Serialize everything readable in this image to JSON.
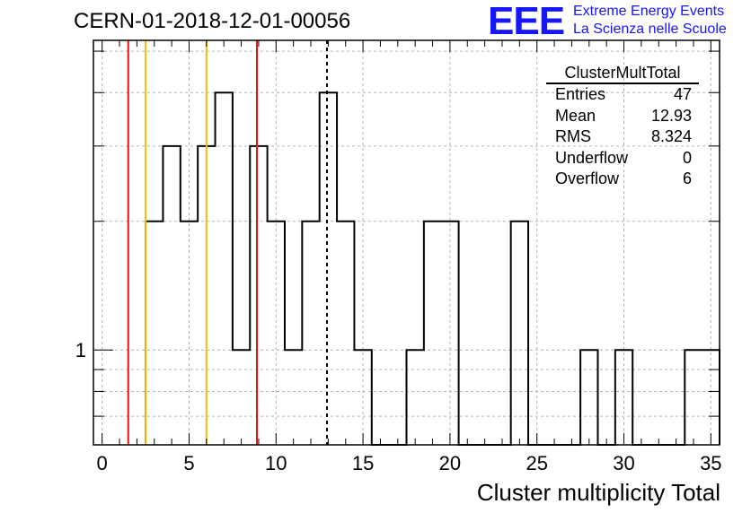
{
  "header": {
    "title": "CERN-01-2018-12-01-00056",
    "logo": "EEE",
    "org_line1": "Extreme Energy Events",
    "org_line2": "La Scienza nelle Scuole"
  },
  "stats": {
    "name": "ClusterMultTotal",
    "rows": [
      {
        "label": "Entries",
        "value": "47"
      },
      {
        "label": "Mean",
        "value": "12.93"
      },
      {
        "label": "RMS",
        "value": "8.324"
      },
      {
        "label": "Underflow",
        "value": "0"
      },
      {
        "label": "Overflow",
        "value": "6"
      }
    ]
  },
  "chart_data": {
    "type": "histogram",
    "title": "CERN-01-2018-12-01-00056",
    "xlabel": "Cluster multiplicity Total",
    "ylabel": "",
    "xlim": [
      -0.5,
      35.5
    ],
    "ylim": [
      0.6,
      5.3
    ],
    "yscale": "log",
    "grid": true,
    "bin_width": 1,
    "bins_low_edges": [
      2.5,
      3.5,
      4.5,
      5.5,
      6.5,
      7.5,
      8.5,
      9.5,
      10.5,
      11.5,
      12.5,
      13.5,
      14.5,
      15.5,
      16.5,
      17.5,
      18.5,
      19.5,
      20.5,
      21.5,
      22.5,
      23.5,
      24.5,
      25.5,
      26.5,
      27.5,
      28.5,
      29.5,
      30.5,
      31.5,
      32.5,
      33.5,
      34.5
    ],
    "counts": [
      2,
      3,
      2,
      3,
      4,
      1,
      3,
      2,
      1,
      2,
      4,
      2,
      1,
      0,
      0,
      1,
      2,
      2,
      0,
      0,
      0,
      2,
      0,
      0,
      0,
      1,
      0,
      1,
      0,
      0,
      0,
      1,
      1
    ],
    "x_ticks": [
      "0",
      "5",
      "10",
      "15",
      "20",
      "25",
      "30",
      "35"
    ],
    "x_tick_values": [
      0,
      5,
      10,
      15,
      20,
      25,
      30,
      35
    ],
    "y_ticks": [
      "1"
    ],
    "y_tick_values": [
      1
    ],
    "vertical_lines": [
      {
        "x": 1.5,
        "color": "#e8140c",
        "style": "solid"
      },
      {
        "x": 2.5,
        "color": "#f0c000",
        "style": "solid"
      },
      {
        "x": 6.0,
        "color": "#f0c000",
        "style": "solid"
      },
      {
        "x": 8.9,
        "color": "#e8140c",
        "style": "solid"
      },
      {
        "x": 12.93,
        "color": "#000000",
        "style": "dashed"
      }
    ],
    "legend_position": "top-right"
  }
}
